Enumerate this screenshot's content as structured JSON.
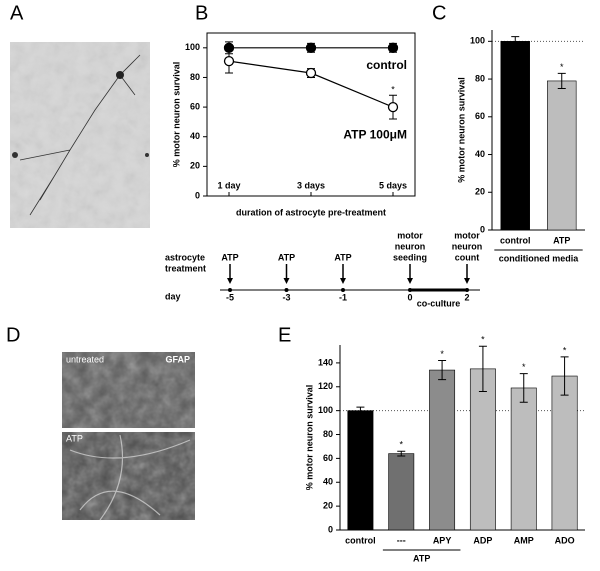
{
  "figure": {
    "images": [
      {
        "panel_label": "A"
      },
      {
        "panel_label": "D",
        "top_label": "untreated",
        "stain": "GFAP",
        "bottom_label": "ATP"
      }
    ],
    "timeline": {
      "row_labels": [
        [
          "astrocyte",
          "treatment"
        ],
        [
          "day"
        ]
      ],
      "events": [
        {
          "label": [
            "ATP"
          ],
          "day": "-5"
        },
        {
          "label": [
            "ATP"
          ],
          "day": "-3"
        },
        {
          "label": [
            "ATP"
          ],
          "day": "-1"
        },
        {
          "label": [
            "motor",
            "neuron",
            "seeding"
          ],
          "day": "0"
        },
        {
          "label": [
            "motor",
            "neuron",
            "count"
          ],
          "day": "2"
        }
      ],
      "segment_label": "co-culture"
    }
  },
  "chart_data": [
    {
      "type": "line",
      "panel_label": "B",
      "categories": [
        "1 day",
        "3 days",
        "5 days"
      ],
      "series": [
        {
          "name": "control",
          "color": "#000000",
          "marker": "filled",
          "values": [
            100,
            100,
            100
          ],
          "errors": [
            4,
            3,
            3
          ]
        },
        {
          "name": "ATP 100μM",
          "color": "#000000",
          "marker": "open",
          "values": [
            91,
            83,
            60
          ],
          "errors": [
            8,
            3,
            8
          ]
        }
      ],
      "significance": [
        null,
        null,
        "*"
      ],
      "ylim": [
        0,
        110
      ],
      "yticks": [
        0,
        20,
        40,
        60,
        80,
        100
      ],
      "y_label": "% motor neuron survival",
      "x_label": "duration of astrocyte pre-treatment"
    },
    {
      "type": "bar",
      "panel_label": "C",
      "categories": [
        "control",
        "ATP"
      ],
      "values": [
        100,
        79
      ],
      "errors": [
        2.5,
        4
      ],
      "colors": [
        "#000000",
        "#bdbdbd"
      ],
      "significance": [
        null,
        "*"
      ],
      "ylim": [
        0,
        106
      ],
      "yticks": [
        0,
        20,
        40,
        60,
        80,
        100
      ],
      "reference_line": 100,
      "y_label": "% motor neuron survival",
      "groups": [
        {
          "label": "conditioned media",
          "from": "control",
          "to": "ATP"
        }
      ]
    },
    {
      "type": "bar",
      "panel_label": "E",
      "categories": [
        "control",
        "---",
        "APY",
        "ADP",
        "AMP",
        "ADO"
      ],
      "values": [
        100,
        64,
        134,
        135,
        119,
        129
      ],
      "errors": [
        3,
        2,
        8,
        19,
        12,
        16
      ],
      "colors": [
        "#000000",
        "#707070",
        "#8c8c8c",
        "#bdbdbd",
        "#bdbdbd",
        "#bdbdbd"
      ],
      "significance": [
        null,
        "*",
        "*",
        "*",
        "*",
        "*"
      ],
      "ylim": [
        0,
        155
      ],
      "yticks": [
        0,
        20,
        40,
        60,
        80,
        100,
        120,
        140
      ],
      "reference_line": 100,
      "y_label": "% motor neuron survival",
      "groups": [
        {
          "label": "ATP",
          "from": "---",
          "to": "APY"
        }
      ]
    }
  ]
}
